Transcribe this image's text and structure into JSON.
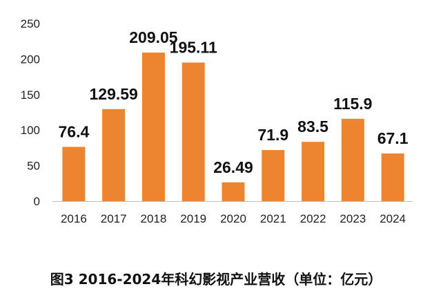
{
  "caption": "图3 2016-2024年科幻影视产业营收（单位：亿元）",
  "colors": {
    "bar": "#ED8530",
    "axis": "#bfbfbf"
  },
  "chart_data": {
    "type": "bar",
    "title": "",
    "xlabel": "",
    "ylabel": "",
    "categories": [
      "2016",
      "2017",
      "2018",
      "2019",
      "2020",
      "2021",
      "2022",
      "2023",
      "2024"
    ],
    "values": [
      76.4,
      129.59,
      209.05,
      195.11,
      26.49,
      71.9,
      83.5,
      115.9,
      67.1
    ],
    "value_labels": [
      "76.4",
      "129.59",
      "209.05",
      "195.11",
      "26.49",
      "71.9",
      "83.5",
      "115.9",
      "67.1"
    ],
    "ylim": [
      0,
      250
    ],
    "yticks": [
      0,
      50,
      100,
      150,
      200,
      250
    ],
    "grid": false,
    "legend": "none"
  }
}
